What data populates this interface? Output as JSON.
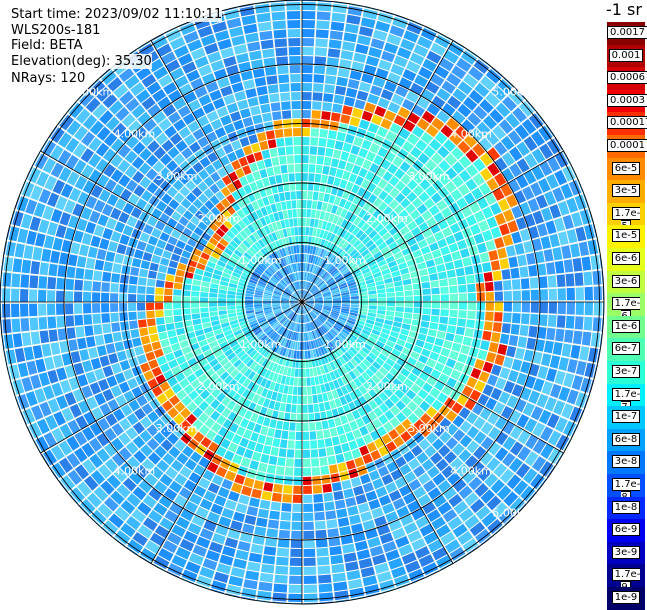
{
  "header": {
    "start_time": "Start time: 2023/09/02 11:10:11",
    "instrument": "WLS200s-181",
    "field": "Field: BETA",
    "elevation": "Elevation(deg): 35.30",
    "nrays": "NRays: 120"
  },
  "colorbar": {
    "title": "-1 sr",
    "labels": [
      "0.0017",
      "0.001",
      "0.0006",
      "0.0003",
      "0.00017",
      "0.0001",
      "6e-5",
      "3e-5",
      "1.7e-5",
      "1e-5",
      "6e-6",
      "3e-6",
      "1.7e-6",
      "1e-6",
      "6e-7",
      "3e-7",
      "1.7e-7",
      "1e-7",
      "6e-8",
      "3e-8",
      "1.7e-8",
      "1e-8",
      "6e-9",
      "3e-9",
      "1.7e-9",
      "1e-9"
    ],
    "colors": [
      "#8b0000",
      "#b00000",
      "#d40000",
      "#f00000",
      "#ff3000",
      "#ff6a00",
      "#ff8c00",
      "#ffae00",
      "#ffd000",
      "#fff200",
      "#e6ff1a",
      "#c0ff40",
      "#9aff66",
      "#70ff8e",
      "#4cffb3",
      "#2affd6",
      "#00f0ff",
      "#00c8ff",
      "#00a0ff",
      "#0078ff",
      "#0050ff",
      "#0028ff",
      "#0000f0",
      "#0000c0",
      "#000090",
      "#000068"
    ]
  },
  "range_rings": {
    "labels_1": [
      "1.00km",
      "1.00km",
      "1.00km",
      "1.00km"
    ],
    "labels_2": [
      "2.00km",
      "2.00km",
      "2.00km",
      "2.00km"
    ],
    "labels_3": [
      "3.00km",
      "3.00km",
      "3.00km",
      "3.00km"
    ],
    "labels_4": [
      "4.00km",
      "4.00km",
      "4.00km",
      "4.00km"
    ],
    "labels_5": [
      "5.00km",
      "5.00km",
      "5.00km"
    ]
  }
}
